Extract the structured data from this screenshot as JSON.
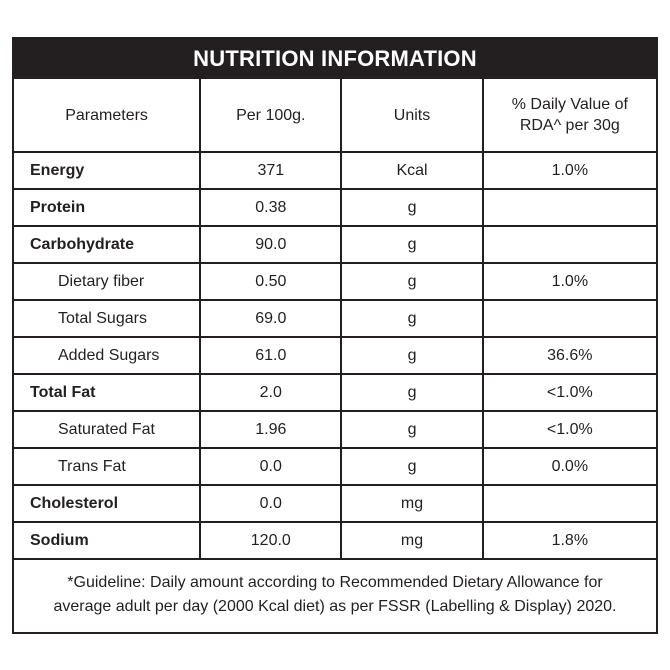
{
  "title": "NUTRITION INFORMATION",
  "headers": {
    "parameters": "Parameters",
    "per100": "Per 100g.",
    "units": "Units",
    "daily_line1": "% Daily Value of",
    "daily_line2": "RDA^ per 30g"
  },
  "rows": [
    {
      "param": "Energy",
      "per100": "371",
      "unit": "Kcal",
      "daily": "1.0%"
    },
    {
      "param": "Protein",
      "per100": "0.38",
      "unit": "g",
      "daily": ""
    },
    {
      "param": "Carbohydrate",
      "per100": "90.0",
      "unit": "g",
      "daily": ""
    },
    {
      "param": "Dietary fiber",
      "per100": "0.50",
      "unit": "g",
      "daily": "1.0%"
    },
    {
      "param": "Total Sugars",
      "per100": "69.0",
      "unit": "g",
      "daily": ""
    },
    {
      "param": "Added Sugars",
      "per100": "61.0",
      "unit": "g",
      "daily": "36.6%"
    },
    {
      "param": "Total Fat",
      "per100": "2.0",
      "unit": "g",
      "daily": "<1.0%"
    },
    {
      "param": "Saturated Fat",
      "per100": "1.96",
      "unit": "g",
      "daily": "<1.0%"
    },
    {
      "param": "Trans Fat",
      "per100": "0.0",
      "unit": "g",
      "daily": "0.0%"
    },
    {
      "param": "Cholesterol",
      "per100": "0.0",
      "unit": "mg",
      "daily": ""
    },
    {
      "param": "Sodium",
      "per100": "120.0",
      "unit": "mg",
      "daily": "1.8%"
    }
  ],
  "footnote": {
    "line1": "*Guideline: Daily amount according to Recommended Dietary Allowance for",
    "line2": "average adult per day (2000 Kcal diet) as per FSSR (Labelling & Display) 2020."
  },
  "colors": {
    "ink": "#231f20",
    "background": "#ffffff"
  }
}
